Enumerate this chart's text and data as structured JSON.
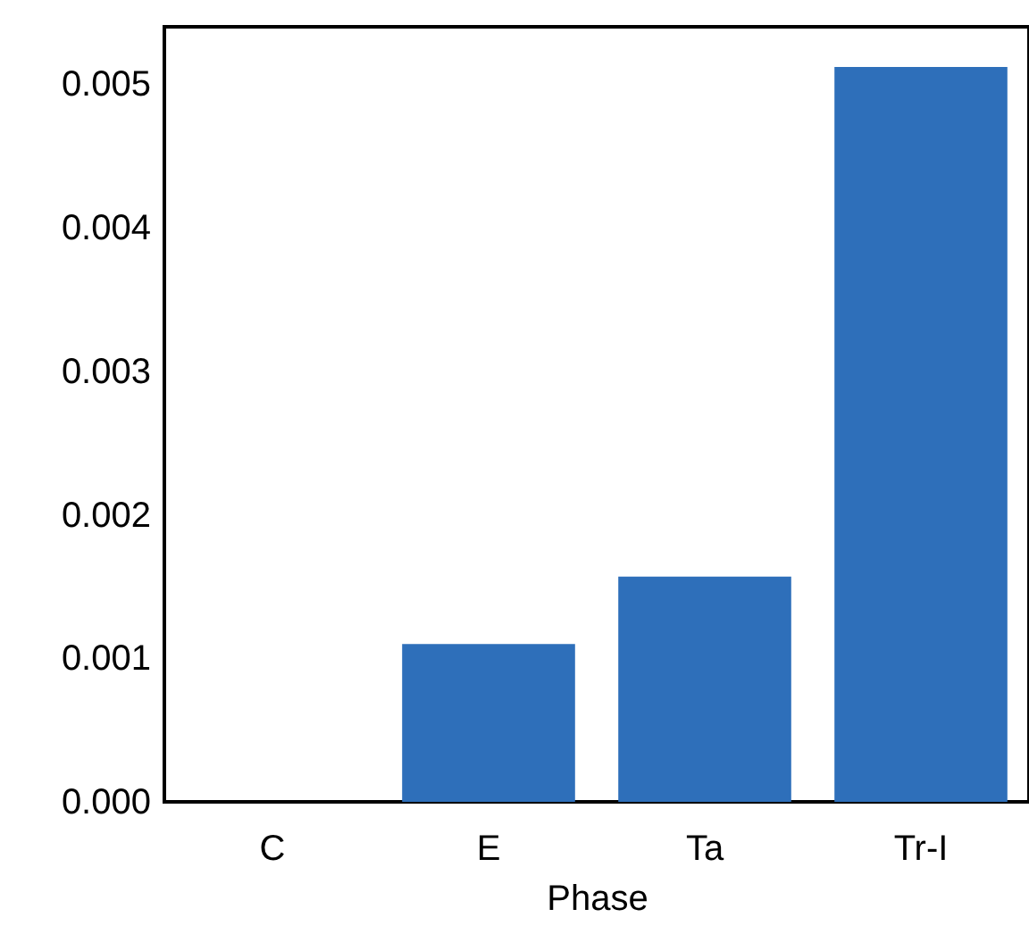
{
  "chart_data": {
    "type": "bar",
    "xlabel": "Phase",
    "categories": [
      "C",
      "E",
      "Ta",
      "Tr-I"
    ],
    "values": [
      0,
      0.0011,
      0.00157,
      0.00512
    ],
    "color": "#2e6fba",
    "ylim": [
      0,
      0.0054
    ],
    "yticks": [
      {
        "value": 0,
        "label": "0.000"
      },
      {
        "value": 0.001,
        "label": "0.001"
      },
      {
        "value": 0.002,
        "label": "0.002"
      },
      {
        "value": 0.003,
        "label": "0.003"
      },
      {
        "value": 0.004,
        "label": "0.004"
      },
      {
        "value": 0.005,
        "label": "0.005"
      }
    ],
    "grid": false
  }
}
